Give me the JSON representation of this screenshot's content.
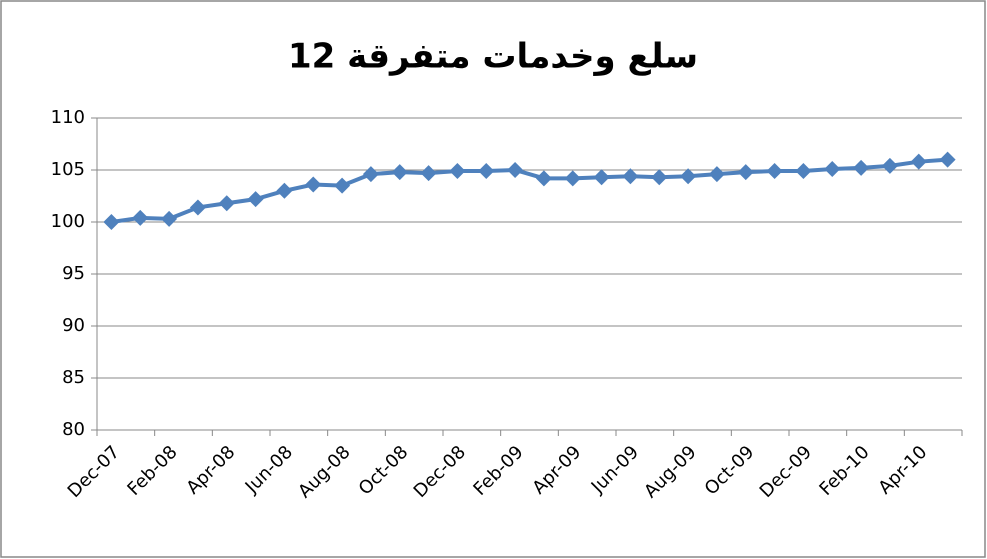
{
  "chart_data": {
    "type": "line",
    "title": "سلع وخدمات متفرقة 12",
    "categories": [
      "Dec-07",
      null,
      "Feb-08",
      null,
      "Apr-08",
      null,
      "Jun-08",
      null,
      "Aug-08",
      null,
      "Oct-08",
      null,
      "Dec-08",
      null,
      "Feb-09",
      null,
      "Apr-09",
      null,
      "Jun-09",
      null,
      "Aug-09",
      null,
      "Oct-09",
      null,
      "Dec-09",
      null,
      "Feb-10",
      null,
      "Apr-10",
      null
    ],
    "series": [
      {
        "name": "سلع وخدمات متفرقة 12",
        "color": "#4f81bd",
        "values": [
          100,
          100.4,
          100.3,
          101.4,
          101.8,
          102.2,
          103.0,
          103.6,
          103.5,
          104.6,
          104.8,
          104.7,
          104.9,
          104.9,
          105.0,
          104.2,
          104.2,
          104.3,
          104.4,
          104.3,
          104.4,
          104.6,
          104.8,
          104.9,
          104.9,
          105.1,
          105.2,
          105.4,
          105.8,
          106.0
        ]
      }
    ],
    "ylim": [
      80,
      110
    ],
    "yticks": [
      80,
      85,
      90,
      95,
      100,
      105,
      110
    ],
    "grid": true
  }
}
